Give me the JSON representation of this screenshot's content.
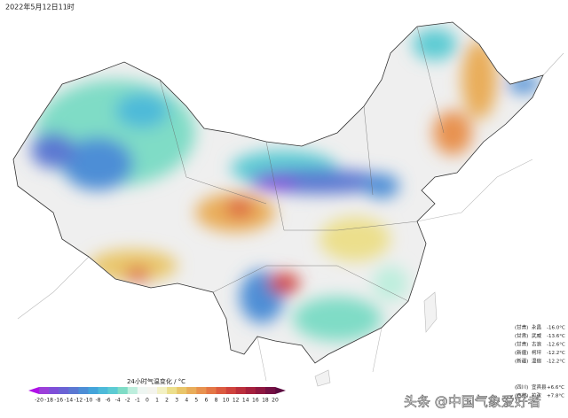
{
  "header": {
    "timestamp": "2022年5月12日11时"
  },
  "legend": {
    "title": "24小时气温变化 / °C",
    "ticks": [
      "-20",
      "-18",
      "-16",
      "-14",
      "-12",
      "-10",
      "-8",
      "-6",
      "-4",
      "-2",
      "-1",
      "0",
      "1",
      "2",
      "3",
      "4",
      "5",
      "6",
      "8",
      "10",
      "12",
      "14",
      "16",
      "18",
      "20"
    ],
    "low_color": "#b010e8",
    "high_color": "#5c0a40",
    "colors": [
      "#9b3fd9",
      "#7e4fd8",
      "#6a62d4",
      "#5b78d2",
      "#4d8ed6",
      "#44a4da",
      "#4dbad9",
      "#5ccbd3",
      "#7fdcc6",
      "#bdeedd",
      "#eef6f2",
      "#f4f4ee",
      "#f3f1c4",
      "#ecdf8c",
      "#e9c66a",
      "#e9ad5a",
      "#e8924f",
      "#e47746",
      "#dc5b40",
      "#cf433d",
      "#bb2f3c",
      "#a5203d",
      "#8e1740",
      "#741043"
    ]
  },
  "stations": [
    {
      "province": "(甘肃)",
      "name": "永昌",
      "change": "-16.0°C"
    },
    {
      "province": "(甘肃)",
      "name": "武威",
      "change": "-13.6°C"
    },
    {
      "province": "(甘肃)",
      "name": "古浪",
      "change": "-12.6°C"
    },
    {
      "province": "(新疆)",
      "name": "柯坪",
      "change": "-12.2°C"
    },
    {
      "province": "(新疆)",
      "name": "温宿",
      "change": "-12.2°C"
    },
    {
      "province": "(四川)",
      "name": "宜宾县",
      "change": "+6.6°C"
    },
    {
      "province": "(西藏)",
      "name": "拉孜",
      "change": "+7.8°C"
    }
  ],
  "watermark": "头条 @中国气象爱好者"
}
